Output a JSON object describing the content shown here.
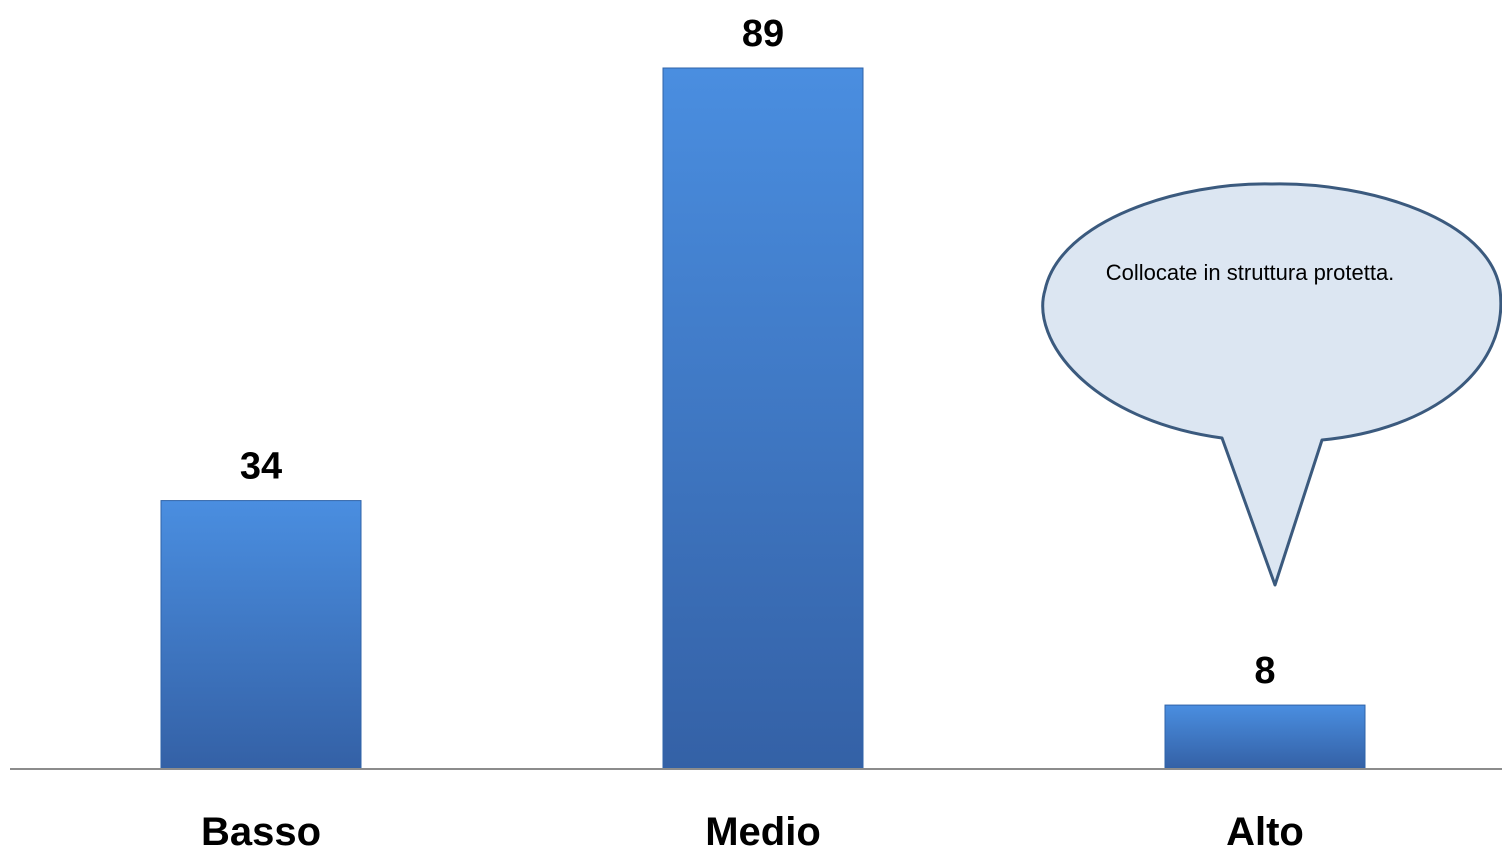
{
  "chart_data": {
    "type": "bar",
    "categories": [
      "Basso",
      "Medio",
      "Alto"
    ],
    "values": [
      34,
      89,
      8
    ],
    "ylim": [
      0,
      89
    ],
    "grid": false,
    "legend": "none",
    "bar_color": "#3f7fcf",
    "bar_color_dark": "#2f63a8",
    "annotation": {
      "text": "Collocate in struttura protetta.",
      "target_category": "Alto",
      "fill": "#dce6f2",
      "stroke": "#3b5a7e"
    }
  }
}
